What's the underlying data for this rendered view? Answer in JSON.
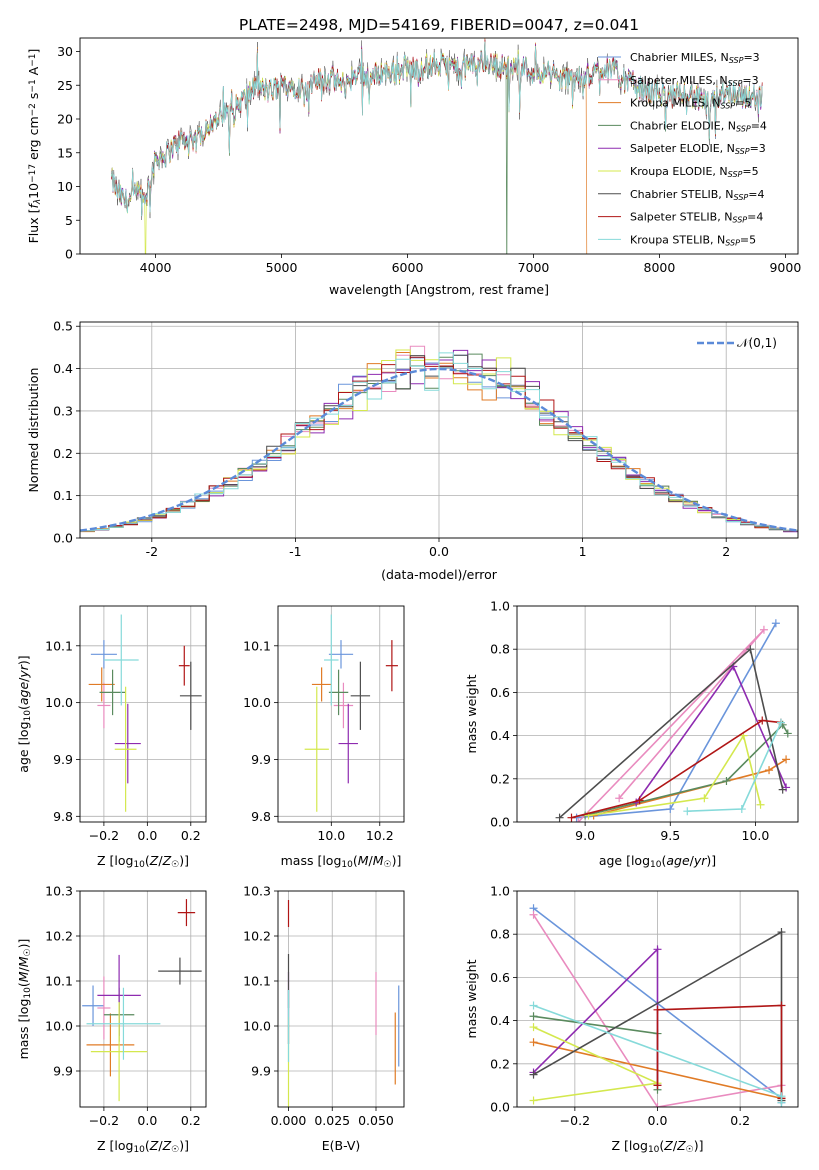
{
  "figure_title": "PLATE=2498, MJD=54169, FIBERID=0047, z=0.041",
  "colors": {
    "c0": "#6a95db",
    "c1": "#e98bbf",
    "c2": "#e07b26",
    "c3": "#5a8a5e",
    "c4": "#8e2bb0",
    "c5": "#d4e84e",
    "c6": "#4d4d4d",
    "c7": "#b01616",
    "c8": "#86dada",
    "grid": "#b0b0b0",
    "normal": "#5b8ad8"
  },
  "chart_data": [
    {
      "type": "line",
      "id": "spectrum",
      "title": "PLATE=2498, MJD=54169, FIBERID=0047, z=0.041",
      "xlabel": "wavelength [Angstrom, rest frame]",
      "ylabel": "Flux [f_λ10^-17 erg cm^-2 s^-1 A^-1]",
      "xlim": [
        3400,
        9100
      ],
      "ylim": [
        0,
        32
      ],
      "xticks": [
        4000,
        5000,
        6000,
        7000,
        8000,
        9000
      ],
      "yticks": [
        0,
        5,
        10,
        15,
        20,
        25,
        30
      ],
      "grid": false,
      "legend": "top-right",
      "continuum": {
        "x": [
          3650,
          3700,
          3750,
          3800,
          3850,
          3900,
          3950,
          4000,
          4100,
          4200,
          4300,
          4400,
          4500,
          4600,
          4700,
          4800,
          4900,
          5000,
          5100,
          5200,
          5300,
          5400,
          5500,
          5600,
          5700,
          5800,
          5900,
          6000,
          6100,
          6200,
          6300,
          6400,
          6500,
          6600,
          6700,
          6800,
          6900,
          7000,
          7100,
          7200,
          7300,
          7400,
          7500,
          7600,
          7700,
          7800,
          7900,
          8000,
          8100,
          8200,
          8300,
          8400,
          8500,
          8600,
          8700,
          8800
        ],
        "y": [
          11,
          9,
          8,
          8,
          9,
          8,
          10,
          14,
          15,
          17,
          16,
          19,
          20,
          21,
          23,
          25,
          24,
          25,
          25,
          24,
          26,
          26,
          25,
          27,
          26,
          27,
          27,
          27.5,
          27.5,
          28,
          28,
          27.5,
          28,
          28.5,
          28,
          27.5,
          28,
          27,
          27,
          26,
          26,
          26,
          27,
          28,
          26,
          25,
          24,
          24,
          23,
          24,
          23,
          22,
          24,
          24,
          23,
          24
        ]
      },
      "series": [
        {
          "name": "Chabrier MILES, N_SSP=3",
          "color": "c0"
        },
        {
          "name": "Salpeter MILES, N_SSP=3",
          "color": "c1"
        },
        {
          "name": "Kroupa MILES, N_SSP=5",
          "color": "c2",
          "cutoff": 7420
        },
        {
          "name": "Chabrier ELODIE, N_SSP=4",
          "color": "c3",
          "drop": 6790
        },
        {
          "name": "Salpeter ELODIE, N_SSP=3",
          "color": "c4"
        },
        {
          "name": "Kroupa ELODIE, N_SSP=5",
          "color": "c5",
          "drop": 3920
        },
        {
          "name": "Chabrier STELIB, N_SSP=4",
          "color": "c6"
        },
        {
          "name": "Salpeter STELIB, N_SSP=4",
          "color": "c7"
        },
        {
          "name": "Kroupa STELIB, N_SSP=5",
          "color": "c8"
        }
      ]
    },
    {
      "type": "histogram",
      "id": "residuals",
      "xlabel": "(data-model)/error",
      "ylabel": "Normed distribution",
      "xlim": [
        -2.5,
        2.5
      ],
      "ylim": [
        0,
        0.51
      ],
      "xticks": [
        -2,
        -1,
        0,
        1,
        2
      ],
      "yticks": [
        0.0,
        0.1,
        0.2,
        0.3,
        0.4,
        0.5
      ],
      "grid": true,
      "legend": "top-right",
      "reference": {
        "name": "𝒩(0,1)",
        "mean": 0,
        "sigma": 1
      },
      "bin_width": 0.1,
      "series_colors": [
        "c0",
        "c1",
        "c2",
        "c3",
        "c4",
        "c5",
        "c6",
        "c7",
        "c8"
      ]
    },
    {
      "type": "errorbar",
      "id": "age_vs_Z",
      "xlabel": "Z [log10(Z/Z_sun)]",
      "ylabel": "age [log10(age/yr)]",
      "xlim": [
        -0.31,
        0.27
      ],
      "ylim": [
        9.79,
        10.17
      ],
      "xticks": [
        -0.2,
        0.0,
        0.2
      ],
      "xticklabels": [
        "−0.2",
        "0.0",
        "0.2"
      ],
      "yticks": [
        9.8,
        9.9,
        10.0,
        10.1
      ],
      "yticklabels": [
        "9.8",
        "9.9",
        "10.0",
        "10.1"
      ],
      "grid": true,
      "points": [
        {
          "c": "c0",
          "x": -0.2,
          "xe": 0.06,
          "y": 10.085,
          "ye": 0.025
        },
        {
          "c": "c1",
          "x": -0.2,
          "xe": 0.03,
          "y": 9.995,
          "ye": 0.04
        },
        {
          "c": "c2",
          "x": -0.21,
          "xe": 0.06,
          "y": 10.032,
          "ye": 0.03
        },
        {
          "c": "c3",
          "x": -0.16,
          "xe": 0.06,
          "y": 10.018,
          "ye": 0.04
        },
        {
          "c": "c4",
          "x": -0.09,
          "xe": 0.06,
          "y": 9.928,
          "ye": 0.07
        },
        {
          "c": "c5",
          "x": -0.1,
          "xe": 0.05,
          "y": 9.918,
          "ye": 0.11
        },
        {
          "c": "c6",
          "x": 0.2,
          "xe": 0.05,
          "y": 10.012,
          "ye": 0.06
        },
        {
          "c": "c7",
          "x": 0.17,
          "xe": 0.025,
          "y": 10.065,
          "ye": 0.035
        },
        {
          "c": "c8",
          "x": -0.12,
          "xe": 0.08,
          "y": 10.075,
          "ye": 0.08
        }
      ]
    },
    {
      "type": "errorbar",
      "id": "age_vs_mass",
      "xlabel": "mass [log10(M/M_sun)]",
      "ylabel": "",
      "xlim": [
        9.78,
        10.3
      ],
      "ylim": [
        9.79,
        10.17
      ],
      "xticks": [
        10.0,
        10.2
      ],
      "xticklabels": [
        "10.0",
        "10.2"
      ],
      "yticks": [
        9.8,
        9.9,
        10.0,
        10.1
      ],
      "yticklabels": [
        "9.8",
        "9.9",
        "10.0",
        "10.1"
      ],
      "grid": true,
      "points": [
        {
          "c": "c0",
          "x": 10.04,
          "xe": 0.05,
          "y": 10.085,
          "ye": 0.025
        },
        {
          "c": "c1",
          "x": 10.05,
          "xe": 0.04,
          "y": 9.995,
          "ye": 0.04
        },
        {
          "c": "c2",
          "x": 9.96,
          "xe": 0.04,
          "y": 10.032,
          "ye": 0.03
        },
        {
          "c": "c3",
          "x": 10.03,
          "xe": 0.04,
          "y": 10.018,
          "ye": 0.04
        },
        {
          "c": "c4",
          "x": 10.07,
          "xe": 0.04,
          "y": 9.928,
          "ye": 0.07
        },
        {
          "c": "c5",
          "x": 9.94,
          "xe": 0.05,
          "y": 9.918,
          "ye": 0.11
        },
        {
          "c": "c6",
          "x": 10.12,
          "xe": 0.04,
          "y": 10.012,
          "ye": 0.06
        },
        {
          "c": "c7",
          "x": 10.25,
          "xe": 0.025,
          "y": 10.065,
          "ye": 0.045
        },
        {
          "c": "c8",
          "x": 10.0,
          "xe": 0.03,
          "y": 10.075,
          "ye": 0.08
        }
      ]
    },
    {
      "type": "line",
      "id": "weight_vs_age",
      "xlabel": "age [log10(age/yr)]",
      "ylabel": "mass weight",
      "xlim": [
        8.6,
        10.25
      ],
      "ylim": [
        0,
        1
      ],
      "xticks": [
        9.0,
        9.5,
        10.0
      ],
      "xticklabels": [
        "9.0",
        "9.5",
        "10.0"
      ],
      "yticks": [
        0,
        0.2,
        0.4,
        0.6,
        0.8,
        1.0
      ],
      "yticklabels": [
        "0.0",
        "0.2",
        "0.4",
        "0.6",
        "0.8",
        "1.0"
      ],
      "grid": true,
      "series": [
        {
          "c": "c0",
          "x": [
            8.95,
            9.5,
            10.12
          ],
          "y": [
            0.02,
            0.06,
            0.92
          ]
        },
        {
          "c": "c1",
          "x": [
            9.2,
            10.05,
            8.96
          ],
          "y": [
            0.11,
            0.89,
            0.0
          ]
        },
        {
          "c": "c2",
          "x": [
            9.05,
            10.08,
            10.18
          ],
          "y": [
            0.03,
            0.24,
            0.29
          ]
        },
        {
          "c": "c3",
          "x": [
            9.0,
            9.83,
            10.16,
            10.19
          ],
          "y": [
            0.03,
            0.19,
            0.45,
            0.41
          ]
        },
        {
          "c": "c4",
          "x": [
            9.3,
            9.87,
            10.18
          ],
          "y": [
            0.09,
            0.72,
            0.16
          ]
        },
        {
          "c": "c5",
          "x": [
            9.02,
            9.7,
            9.93,
            10.03
          ],
          "y": [
            0.03,
            0.11,
            0.4,
            0.08
          ]
        },
        {
          "c": "c6",
          "x": [
            8.85,
            9.97,
            10.16
          ],
          "y": [
            0.02,
            0.8,
            0.15
          ]
        },
        {
          "c": "c7",
          "x": [
            8.92,
            9.32,
            10.04,
            10.15
          ],
          "y": [
            0.02,
            0.1,
            0.47,
            0.46
          ]
        },
        {
          "c": "c8",
          "x": [
            9.6,
            9.92,
            10.15
          ],
          "y": [
            0.05,
            0.06,
            0.46
          ]
        }
      ]
    },
    {
      "type": "errorbar",
      "id": "mass_vs_Z",
      "xlabel": "Z [log10(Z/Z_sun)]",
      "ylabel": "mass [log10(M/M_sun)]",
      "xlim": [
        -0.31,
        0.27
      ],
      "ylim": [
        9.82,
        10.3
      ],
      "xticks": [
        -0.2,
        0.0,
        0.2
      ],
      "xticklabels": [
        "−0.2",
        "0.0",
        "0.2"
      ],
      "yticks": [
        9.9,
        10.0,
        10.1,
        10.2,
        10.3
      ],
      "yticklabels": [
        "9.9",
        "10.0",
        "10.1",
        "10.2",
        "10.3"
      ],
      "grid": true,
      "points": [
        {
          "c": "c0",
          "x": -0.25,
          "xe": 0.05,
          "y": 10.045,
          "ye": 0.045
        },
        {
          "c": "c1",
          "x": -0.2,
          "xe": 0.03,
          "y": 10.04,
          "ye": 0.07
        },
        {
          "c": "c2",
          "x": -0.17,
          "xe": 0.11,
          "y": 9.958,
          "ye": 0.07
        },
        {
          "c": "c3",
          "x": -0.13,
          "xe": 0.07,
          "y": 10.025,
          "ye": 0.06
        },
        {
          "c": "c4",
          "x": -0.13,
          "xe": 0.1,
          "y": 10.068,
          "ye": 0.09
        },
        {
          "c": "c5",
          "x": -0.13,
          "xe": 0.13,
          "y": 9.943,
          "ye": 0.11
        },
        {
          "c": "c6",
          "x": 0.15,
          "xe": 0.1,
          "y": 10.122,
          "ye": 0.03
        },
        {
          "c": "c7",
          "x": 0.18,
          "xe": 0.04,
          "y": 10.252,
          "ye": 0.03
        },
        {
          "c": "c8",
          "x": -0.11,
          "xe": 0.17,
          "y": 10.005,
          "ye": 0.08
        }
      ]
    },
    {
      "type": "errorbar",
      "id": "mass_vs_ebv",
      "xlabel": "E(B-V)",
      "ylabel": "",
      "xlim": [
        -0.006,
        0.066
      ],
      "ylim": [
        9.82,
        10.3
      ],
      "xticks": [
        0.0,
        0.025,
        0.05
      ],
      "xticklabels": [
        "0.000",
        "0.025",
        "0.050"
      ],
      "yticks": [
        9.9,
        10.0,
        10.1,
        10.2,
        10.3
      ],
      "yticklabels": [
        "9.9",
        "10.0",
        "10.1",
        "10.2",
        "10.3"
      ],
      "grid": true,
      "points": [
        {
          "c": "c0",
          "x": 0.063,
          "xe": 0,
          "y": 10.0,
          "ye": 0.09
        },
        {
          "c": "c1",
          "x": 0.05,
          "xe": 0,
          "y": 10.05,
          "ye": 0.07
        },
        {
          "c": "c2",
          "x": 0.061,
          "xe": 0,
          "y": 9.95,
          "ye": 0.08
        },
        {
          "c": "c3",
          "x": 0.0,
          "xe": 0,
          "y": 10.02,
          "ye": 0.06
        },
        {
          "c": "c4",
          "x": 0.0,
          "xe": 0,
          "y": 10.04,
          "ye": 0.08
        },
        {
          "c": "c5",
          "x": 0.0,
          "xe": 0,
          "y": 9.92,
          "ye": 0.1
        },
        {
          "c": "c6",
          "x": 0.0,
          "xe": 0,
          "y": 10.1,
          "ye": 0.06
        },
        {
          "c": "c7",
          "x": 0.0,
          "xe": 0,
          "y": 10.25,
          "ye": 0.03
        },
        {
          "c": "c8",
          "x": 0.0,
          "xe": 0,
          "y": 10.0,
          "ye": 0.08
        }
      ]
    },
    {
      "type": "line",
      "id": "weight_vs_Z",
      "xlabel": "Z [log10(Z/Z_sun)]",
      "ylabel": "mass weight",
      "xlim": [
        -0.34,
        0.34
      ],
      "ylim": [
        0,
        1
      ],
      "xticks": [
        -0.2,
        0.0,
        0.2
      ],
      "xticklabels": [
        "−0.2",
        "0.0",
        "0.2"
      ],
      "yticks": [
        0,
        0.2,
        0.4,
        0.6,
        0.8,
        1.0
      ],
      "yticklabels": [
        "0.0",
        "0.2",
        "0.4",
        "0.6",
        "0.8",
        "1.0"
      ],
      "grid": true,
      "series": [
        {
          "c": "c0",
          "x": [
            -0.3,
            0.3,
            0.3
          ],
          "y": [
            0.92,
            0.04,
            0.02
          ]
        },
        {
          "c": "c1",
          "x": [
            -0.3,
            0.0,
            0.3
          ],
          "y": [
            0.89,
            0.0,
            0.1
          ]
        },
        {
          "c": "c2",
          "x": [
            -0.3,
            0.3,
            0.3
          ],
          "y": [
            0.3,
            0.04,
            0.03
          ]
        },
        {
          "c": "c3",
          "x": [
            -0.3,
            0.0,
            0.0
          ],
          "y": [
            0.42,
            0.34,
            0.08
          ]
        },
        {
          "c": "c4",
          "x": [
            -0.3,
            0.0,
            0.0
          ],
          "y": [
            0.16,
            0.73,
            0.1
          ]
        },
        {
          "c": "c5",
          "x": [
            -0.3,
            0.0,
            -0.3
          ],
          "y": [
            0.03,
            0.11,
            0.37
          ]
        },
        {
          "c": "c6",
          "x": [
            -0.3,
            0.3,
            0.3
          ],
          "y": [
            0.15,
            0.81,
            0.03
          ]
        },
        {
          "c": "c7",
          "x": [
            0.0,
            0.0,
            0.3,
            0.3
          ],
          "y": [
            0.1,
            0.45,
            0.47,
            0.04
          ]
        },
        {
          "c": "c8",
          "x": [
            -0.3,
            0.3,
            0.3
          ],
          "y": [
            0.47,
            0.05,
            0.02
          ]
        }
      ]
    }
  ]
}
